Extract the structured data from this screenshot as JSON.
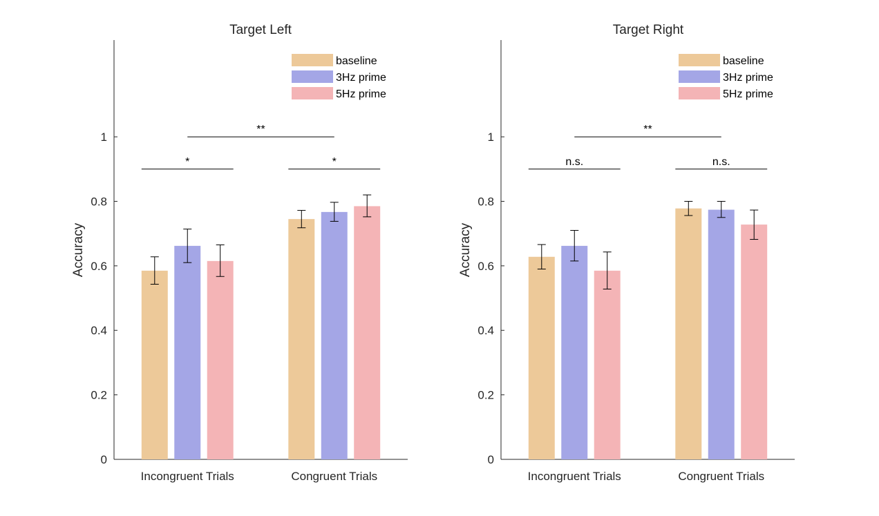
{
  "chart_data": [
    {
      "type": "bar",
      "title": "Target Left",
      "ylabel": "Accuracy",
      "ylim": [
        0,
        1.3
      ],
      "yticks": [
        0,
        0.2,
        0.4,
        0.6,
        0.8,
        1
      ],
      "ytick_labels": [
        "0",
        "0.2",
        "0.4",
        "0.6",
        "0.8",
        "1"
      ],
      "categories": [
        "Incongruent Trials",
        "Congruent Trials"
      ],
      "series": [
        {
          "name": "baseline",
          "color": "#EDC999",
          "values": [
            0.585,
            0.745
          ],
          "err_low": [
            0.543,
            0.718
          ],
          "err_high": [
            0.628,
            0.772
          ]
        },
        {
          "name": "3Hz prime",
          "color": "#A4A6E6",
          "values": [
            0.662,
            0.767
          ],
          "err_low": [
            0.61,
            0.738
          ],
          "err_high": [
            0.714,
            0.797
          ]
        },
        {
          "name": "5Hz prime",
          "color": "#F4B4B6",
          "values": [
            0.615,
            0.785
          ],
          "err_low": [
            0.567,
            0.752
          ],
          "err_high": [
            0.665,
            0.82
          ]
        }
      ],
      "significance": [
        {
          "label": "*",
          "category": 0,
          "y": 0.9
        },
        {
          "label": "*",
          "category": 1,
          "y": 0.9
        },
        {
          "label": "**",
          "span": [
            0,
            1
          ],
          "y": 1.0
        }
      ],
      "legend": "top-right"
    },
    {
      "type": "bar",
      "title": "Target Right",
      "ylabel": "Accuracy",
      "ylim": [
        0,
        1.3
      ],
      "yticks": [
        0,
        0.2,
        0.4,
        0.6,
        0.8,
        1
      ],
      "ytick_labels": [
        "0",
        "0.2",
        "0.4",
        "0.6",
        "0.8",
        "1"
      ],
      "categories": [
        "Incongruent Trials",
        "Congruent Trials"
      ],
      "series": [
        {
          "name": "baseline",
          "color": "#EDC999",
          "values": [
            0.628,
            0.778
          ],
          "err_low": [
            0.59,
            0.756
          ],
          "err_high": [
            0.666,
            0.8
          ]
        },
        {
          "name": "3Hz prime",
          "color": "#A4A6E6",
          "values": [
            0.662,
            0.774
          ],
          "err_low": [
            0.615,
            0.75
          ],
          "err_high": [
            0.71,
            0.8
          ]
        },
        {
          "name": "5Hz prime",
          "color": "#F4B4B6",
          "values": [
            0.585,
            0.728
          ],
          "err_low": [
            0.528,
            0.682
          ],
          "err_high": [
            0.643,
            0.773
          ]
        }
      ],
      "significance": [
        {
          "label": "n.s.",
          "category": 0,
          "y": 0.9
        },
        {
          "label": "n.s.",
          "category": 1,
          "y": 0.9
        },
        {
          "label": "**",
          "span": [
            0,
            1
          ],
          "y": 1.0
        }
      ],
      "legend": "top-right"
    }
  ]
}
